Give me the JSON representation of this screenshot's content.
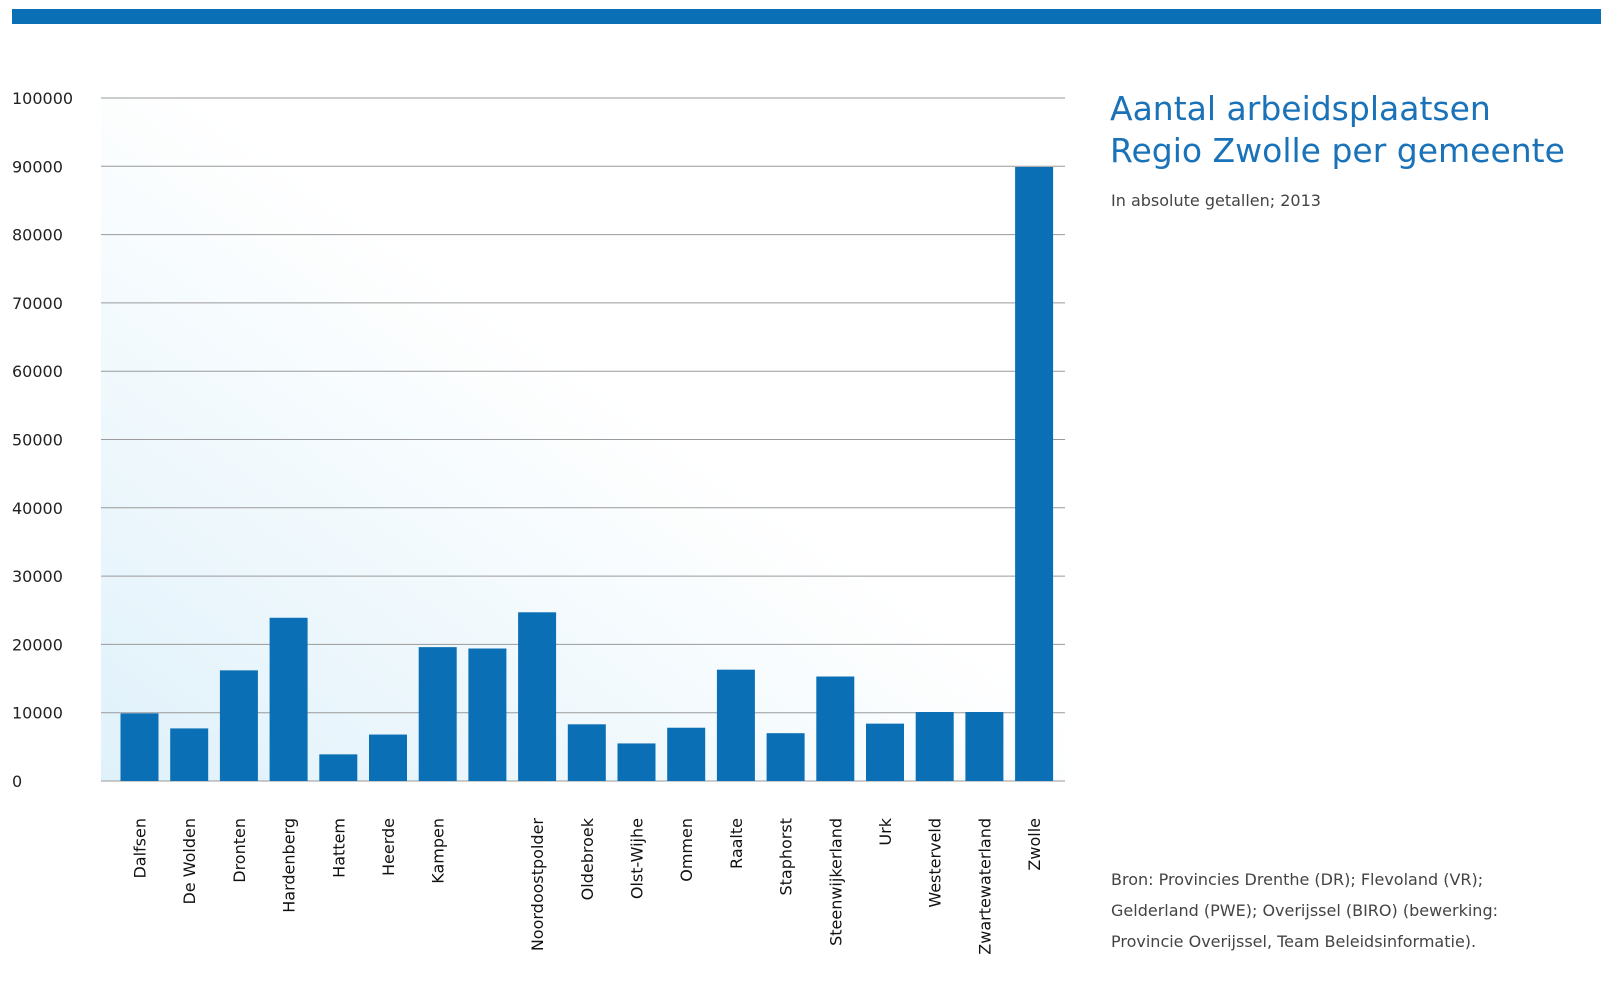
{
  "colors": {
    "top_bar": "#0b6fb6",
    "bar": "#0b6fb6",
    "title": "#1a72b8",
    "grid": "#9a9a9a",
    "plot_bg_start": "#dff1fa",
    "plot_bg_end": "#ffffff"
  },
  "chart_data": {
    "type": "bar",
    "title_lines": [
      "Aantal arbeidsplaatsen",
      "Regio Zwolle per gemeente"
    ],
    "subtitle": "In absolute getallen; 2013",
    "source": "Bron: Provincies Drenthe (DR); Flevoland (VR); Gelderland (PWE); Overijssel (BIRO) (bewerking: Provincie Overijssel, Team Beleidsinformatie).",
    "categories": [
      "Dalfsen",
      "De Wolden",
      "Dronten",
      "Hardenberg",
      "Hattem",
      "Heerde",
      "Kampen",
      "",
      "Noordoostpolder",
      "Oldebroek",
      "Olst-Wijhe",
      "Ommen",
      "Raalte",
      "Staphorst",
      "Steenwijkerland",
      "Urk",
      "Westerveld",
      "Zwartewaterland",
      "Zwolle"
    ],
    "values": [
      9900,
      7700,
      16200,
      23900,
      3900,
      6800,
      19600,
      19400,
      24700,
      8300,
      5500,
      7800,
      16300,
      7000,
      15300,
      8400,
      10100,
      10100,
      89900
    ],
    "ylim": [
      0,
      100000
    ],
    "yticks": [
      "0",
      "10000",
      "20000",
      "30000",
      "40000",
      "50000",
      "60000",
      "70000",
      "80000",
      "90000",
      "100000"
    ],
    "grid": true,
    "legend": "none"
  }
}
